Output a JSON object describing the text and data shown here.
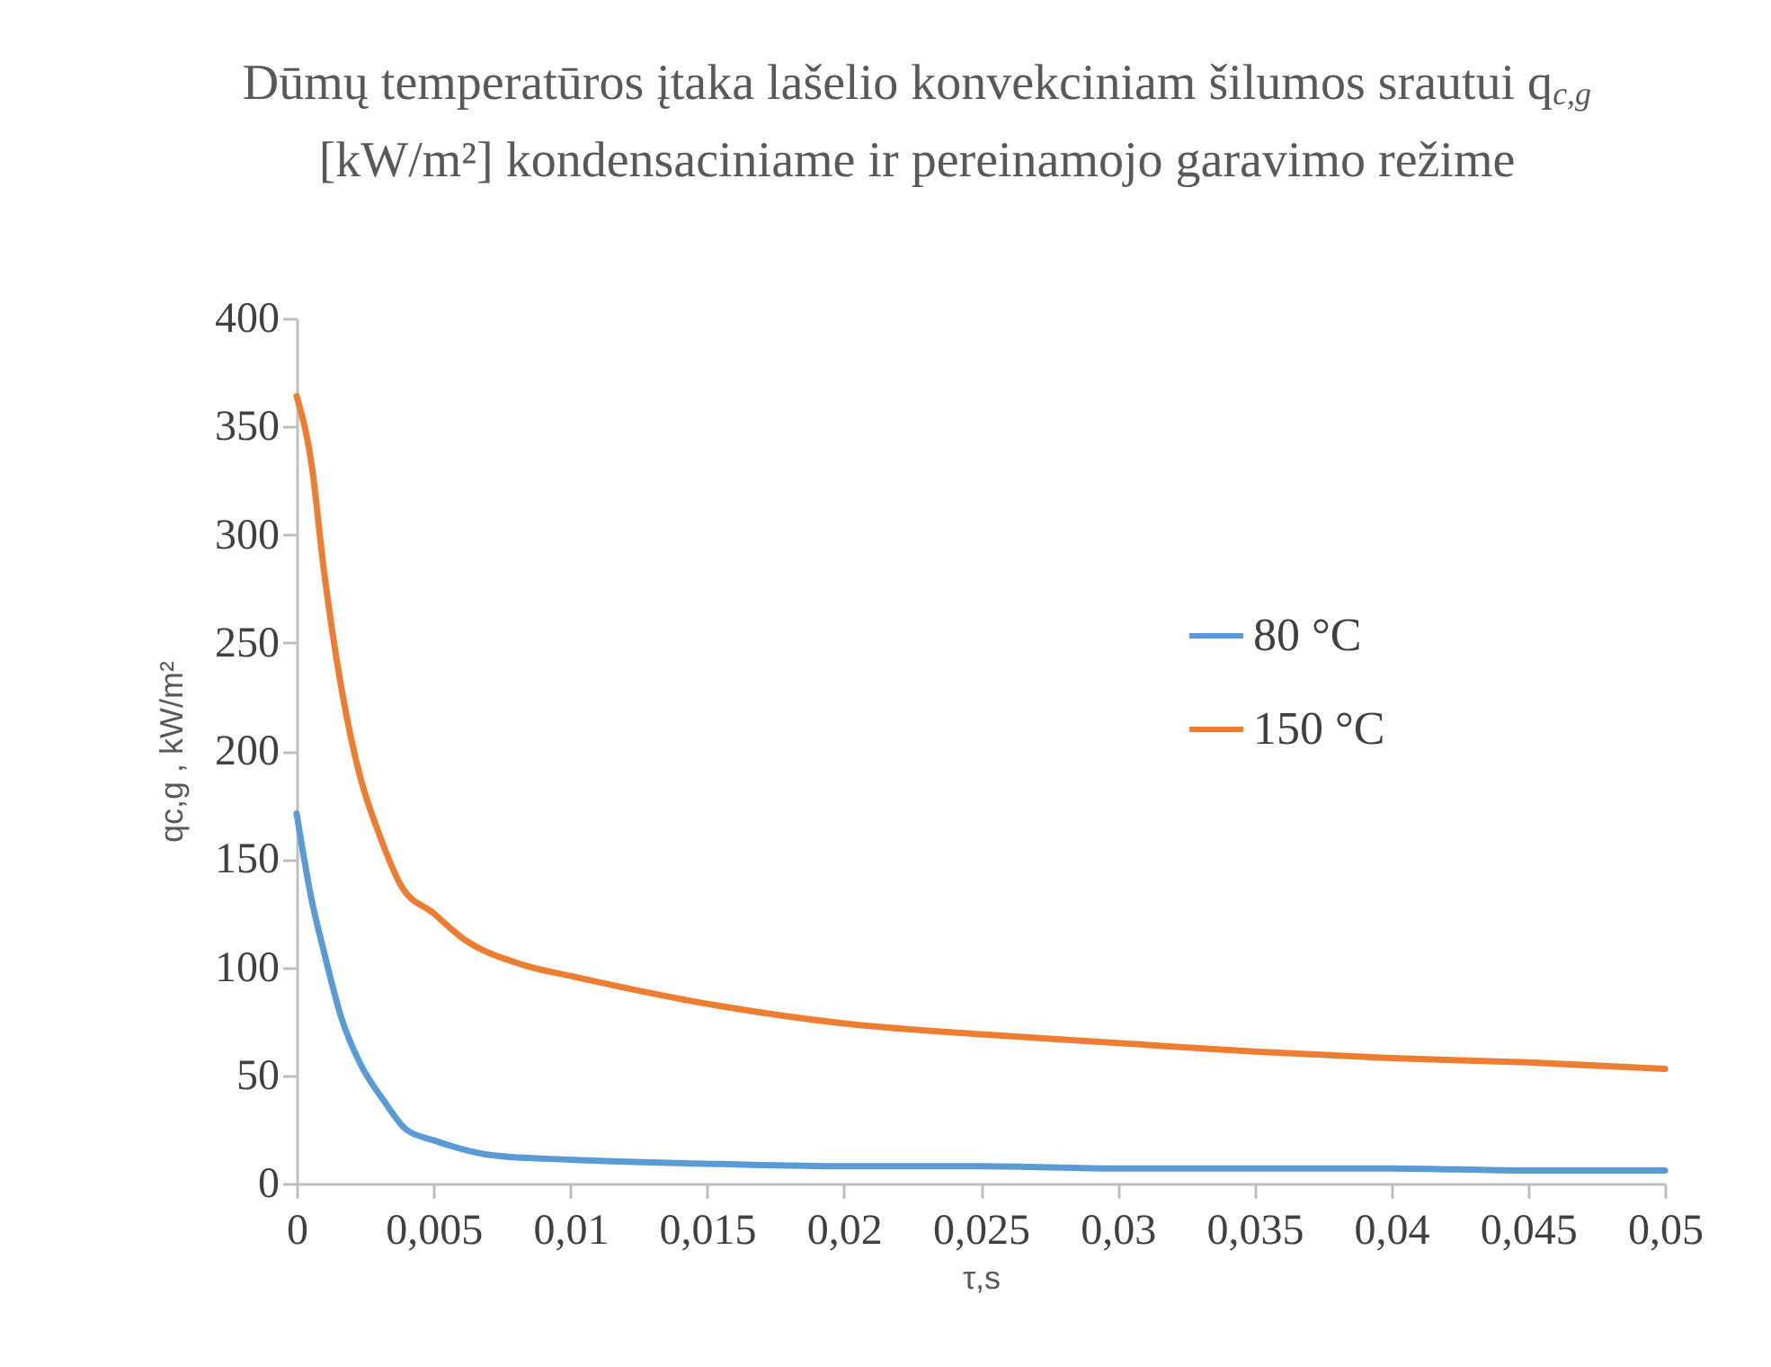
{
  "chart_data": {
    "type": "line",
    "title": "Dūmų temperatūros įtaka lašelio konvekciniam šilumos srautui q$_{c,g}$ [kW/m²] kondensaciniame ir pereinamojo garavimo režime",
    "xlabel": "τ,s",
    "ylabel": "qc,g , kW/m²",
    "x": [
      0,
      0.00055,
      0.001,
      0.00165,
      0.0023,
      0.0032,
      0.004,
      0.005,
      0.0072,
      0.01,
      0.0155,
      0.02,
      0.025,
      0.03,
      0.035,
      0.04,
      0.045,
      0.05
    ],
    "series": [
      {
        "name": "80 °C",
        "color": "#5b9bd5",
        "values": [
          171,
          131,
          107,
          76,
          56,
          38,
          25,
          20,
          13,
          11,
          9,
          8,
          8,
          7,
          7,
          7,
          6,
          6
        ]
      },
      {
        "name": "150 °C",
        "color": "#ed7d31",
        "x": [
          0,
          0.00055,
          0.001,
          0.00165,
          0.0023,
          0.003,
          0.00385,
          0.005,
          0.006,
          0.0083,
          0.01,
          0.0155,
          0.02,
          0.025,
          0.03,
          0.035,
          0.04,
          0.045,
          0.05
        ],
        "values": [
          364,
          332,
          283,
          228,
          189,
          162,
          137,
          125,
          114,
          101,
          96,
          82,
          74,
          69,
          65,
          61,
          58,
          56,
          53
        ]
      }
    ],
    "xlim": [
      0,
      0.05
    ],
    "xticks": [
      0,
      {
        "value": 0.005,
        "label": "0,005"
      },
      {
        "value": 0.01,
        "label": "0,01"
      },
      {
        "value": 0.015,
        "label": "0,015"
      },
      {
        "value": 0.02,
        "label": "0,02"
      },
      {
        "value": 0.025,
        "label": "0,025"
      },
      {
        "value": 0.03,
        "label": "0,03"
      },
      {
        "value": 0.035,
        "label": "0,035"
      },
      {
        "value": 0.04,
        "label": "0,04"
      },
      {
        "value": 0.045,
        "label": "0,045"
      },
      {
        "value": 0.05,
        "label": "0,05"
      }
    ],
    "ylim": [
      0,
      400
    ],
    "yticks": [
      0,
      50,
      100,
      150,
      200,
      250,
      300,
      350,
      400
    ],
    "grid": false,
    "legend": "right",
    "marker": "none",
    "line_style": "solid"
  }
}
